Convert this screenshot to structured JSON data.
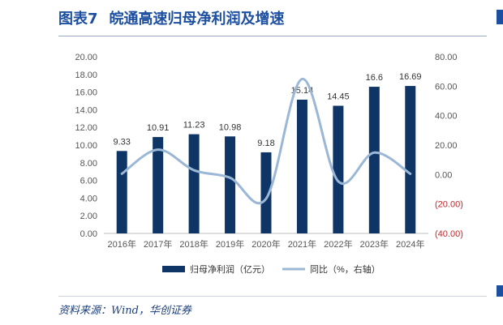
{
  "header": {
    "figure_no": "图表7",
    "title": "皖通高速归母净利润及增速"
  },
  "footer": {
    "source": "资料来源：Wind，华创证券"
  },
  "colors": {
    "accent": "#1c4fa0",
    "bar": "#0f3566",
    "line": "#9bb7d6",
    "negative": "#c0262c",
    "axis_text": "#555555"
  },
  "chart_data": {
    "type": "bar",
    "categories": [
      "2016年",
      "2017年",
      "2018年",
      "2019年",
      "2020年",
      "2021年",
      "2022年",
      "2023年",
      "2024年"
    ],
    "series": [
      {
        "name": "归母净利润（亿元）",
        "type": "bar",
        "axis": "left",
        "values": [
          9.33,
          10.91,
          11.23,
          10.98,
          9.18,
          15.14,
          14.45,
          16.6,
          16.69
        ],
        "labels": [
          "9.33",
          "10.91",
          "11.23",
          "10.98",
          "9.18",
          "15.14",
          "14.45",
          "16.6",
          "16.69"
        ]
      },
      {
        "name": "同比（%，右轴）",
        "type": "line",
        "axis": "right",
        "values": [
          0.5,
          16.9,
          2.9,
          -2.2,
          -16.4,
          64.9,
          -4.6,
          14.9,
          0.5
        ]
      }
    ],
    "y_left": {
      "ylim": [
        0,
        20
      ],
      "ticks": [
        "0.00",
        "2.00",
        "4.00",
        "6.00",
        "8.00",
        "10.00",
        "12.00",
        "14.00",
        "16.00",
        "18.00",
        "20.00"
      ]
    },
    "y_right": {
      "ylim": [
        -40,
        80
      ],
      "ticks": [
        "(40.00)",
        "(20.00)",
        "0.00",
        "20.00",
        "40.00",
        "60.00",
        "80.00"
      ]
    },
    "grid": false,
    "legend_position": "bottom"
  }
}
